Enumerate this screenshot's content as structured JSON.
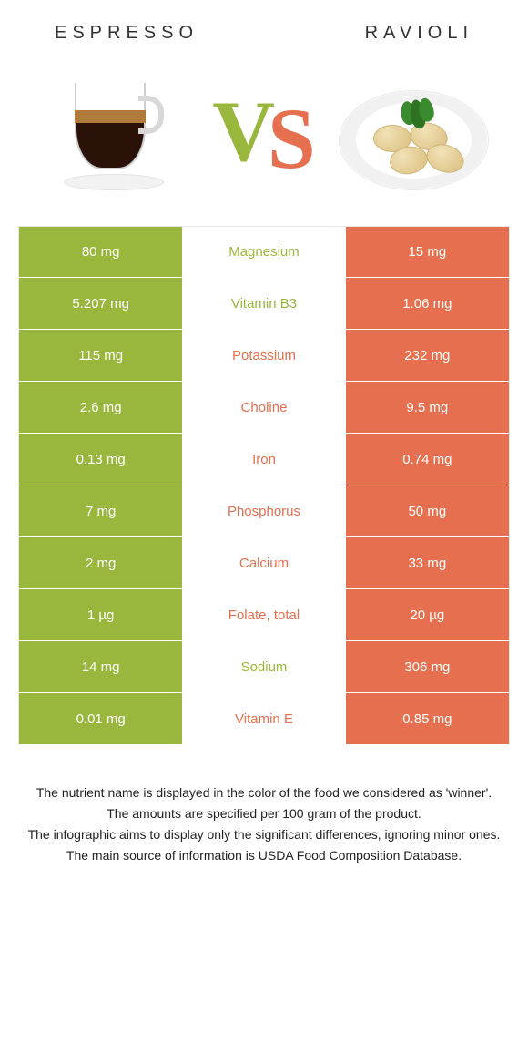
{
  "colors": {
    "food1": "#99b73c",
    "food2": "#e56f4e",
    "row_stripe_offset": "#ffffff",
    "text": "#333333"
  },
  "header": {
    "food1": "Espresso",
    "food2": "Ravioli",
    "vs_v": "V",
    "vs_s": "S"
  },
  "rows": [
    {
      "nutrient": "Magnesium",
      "v1": "80 mg",
      "v2": "15 mg",
      "winner": 1
    },
    {
      "nutrient": "Vitamin B3",
      "v1": "5.207 mg",
      "v2": "1.06 mg",
      "winner": 1
    },
    {
      "nutrient": "Potassium",
      "v1": "115 mg",
      "v2": "232 mg",
      "winner": 2
    },
    {
      "nutrient": "Choline",
      "v1": "2.6 mg",
      "v2": "9.5 mg",
      "winner": 2
    },
    {
      "nutrient": "Iron",
      "v1": "0.13 mg",
      "v2": "0.74 mg",
      "winner": 2
    },
    {
      "nutrient": "Phosphorus",
      "v1": "7 mg",
      "v2": "50 mg",
      "winner": 2
    },
    {
      "nutrient": "Calcium",
      "v1": "2 mg",
      "v2": "33 mg",
      "winner": 2
    },
    {
      "nutrient": "Folate, total",
      "v1": "1 µg",
      "v2": "20 µg",
      "winner": 2
    },
    {
      "nutrient": "Sodium",
      "v1": "14 mg",
      "v2": "306 mg",
      "winner": 1
    },
    {
      "nutrient": "Vitamin E",
      "v1": "0.01 mg",
      "v2": "0.85 mg",
      "winner": 2
    }
  ],
  "footnotes": [
    "The nutrient name is displayed in the color of the food we considered as 'winner'.",
    "The amounts are specified per 100 gram of the product.",
    "The infographic aims to display only the significant differences, ignoring minor ones.",
    "The main source of information is USDA Food Composition Database."
  ]
}
